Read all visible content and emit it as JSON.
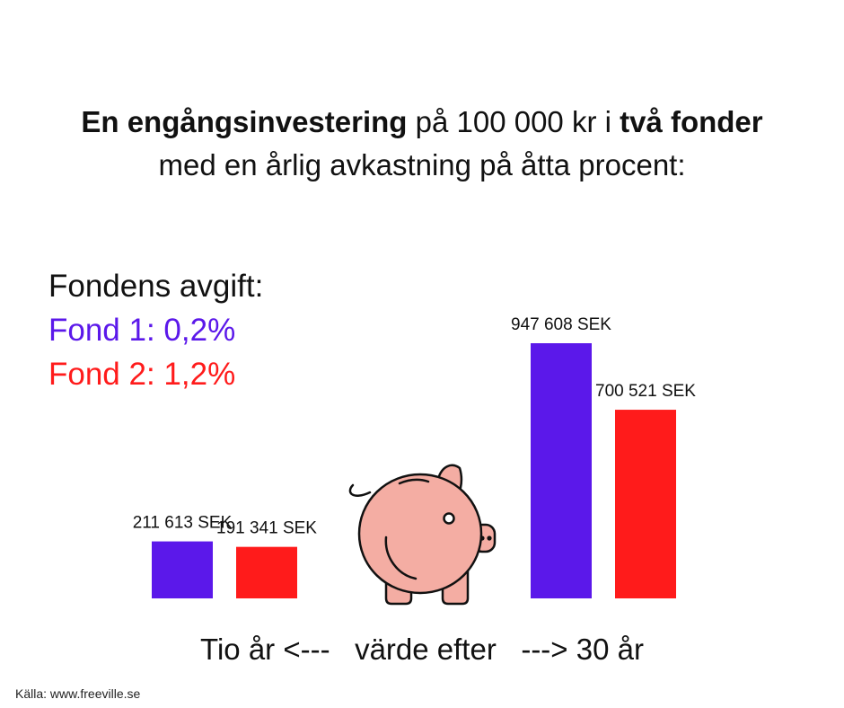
{
  "title": {
    "part1_bold": "En engångsinvestering",
    "part2": " på 100 000 kr i ",
    "part3_bold": "två fonder",
    "line2": "med en årlig avkastning på åtta procent:"
  },
  "legend": {
    "heading": "Fondens avgift:",
    "fund1": "Fond 1: 0,2%",
    "fund2": "Fond 2: 1,2%"
  },
  "colors": {
    "fund1": "#5b18ea",
    "fund2": "#ff1b1b",
    "pig": "#f4ada3"
  },
  "chart_data": {
    "type": "bar",
    "categories": [
      "Tio år",
      "30 år"
    ],
    "series": [
      {
        "name": "Fond 1: 0,2%",
        "values": [
          211613,
          947608
        ],
        "labels": [
          "211 613 SEK",
          "947 608 SEK"
        ]
      },
      {
        "name": "Fond 2: 1,2%",
        "values": [
          191341,
          700521
        ],
        "labels": [
          "191 341 SEK",
          "700 521 SEK"
        ]
      }
    ],
    "unit": "SEK",
    "ylim": [
      0,
      947608
    ],
    "grid": false,
    "legend_position": "left"
  },
  "axis_caption": "Tio år <---   värde efter   ---> 30 år",
  "source": "Källa: www.freeville.se",
  "icon": "piggy-bank-icon"
}
